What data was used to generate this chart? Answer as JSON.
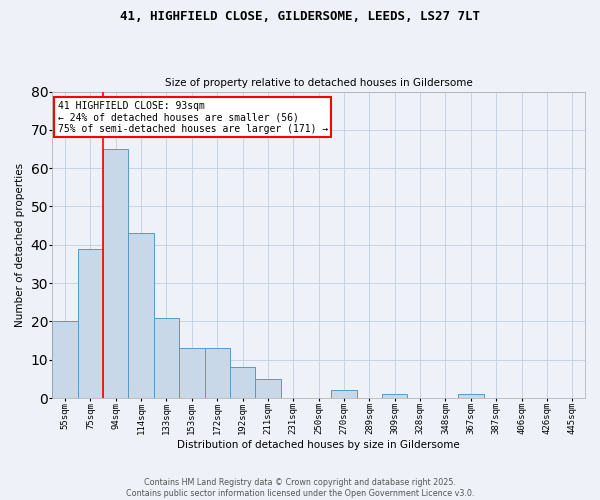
{
  "title_line1": "41, HIGHFIELD CLOSE, GILDERSOME, LEEDS, LS27 7LT",
  "title_line2": "Size of property relative to detached houses in Gildersome",
  "xlabel": "Distribution of detached houses by size in Gildersome",
  "ylabel": "Number of detached properties",
  "bin_labels": [
    "55sqm",
    "75sqm",
    "94sqm",
    "114sqm",
    "133sqm",
    "153sqm",
    "172sqm",
    "192sqm",
    "211sqm",
    "231sqm",
    "250sqm",
    "270sqm",
    "289sqm",
    "309sqm",
    "328sqm",
    "348sqm",
    "367sqm",
    "387sqm",
    "406sqm",
    "426sqm",
    "445sqm"
  ],
  "bar_heights": [
    20,
    39,
    65,
    43,
    21,
    13,
    13,
    8,
    5,
    0,
    0,
    2,
    0,
    1,
    0,
    0,
    1,
    0,
    0,
    0,
    0
  ],
  "bar_color": "#c8d8e8",
  "bar_edge_color": "#5599cc",
  "red_line_index": 2,
  "annotation_title": "41 HIGHFIELD CLOSE: 93sqm",
  "annotation_line2": "← 24% of detached houses are smaller (56)",
  "annotation_line3": "75% of semi-detached houses are larger (171) →",
  "ylim": [
    0,
    80
  ],
  "yticks": [
    0,
    10,
    20,
    30,
    40,
    50,
    60,
    70,
    80
  ],
  "footer_line1": "Contains HM Land Registry data © Crown copyright and database right 2025.",
  "footer_line2": "Contains public sector information licensed under the Open Government Licence v3.0.",
  "background_color": "#eef2f8",
  "title_fontsize": 9,
  "subtitle_fontsize": 8
}
